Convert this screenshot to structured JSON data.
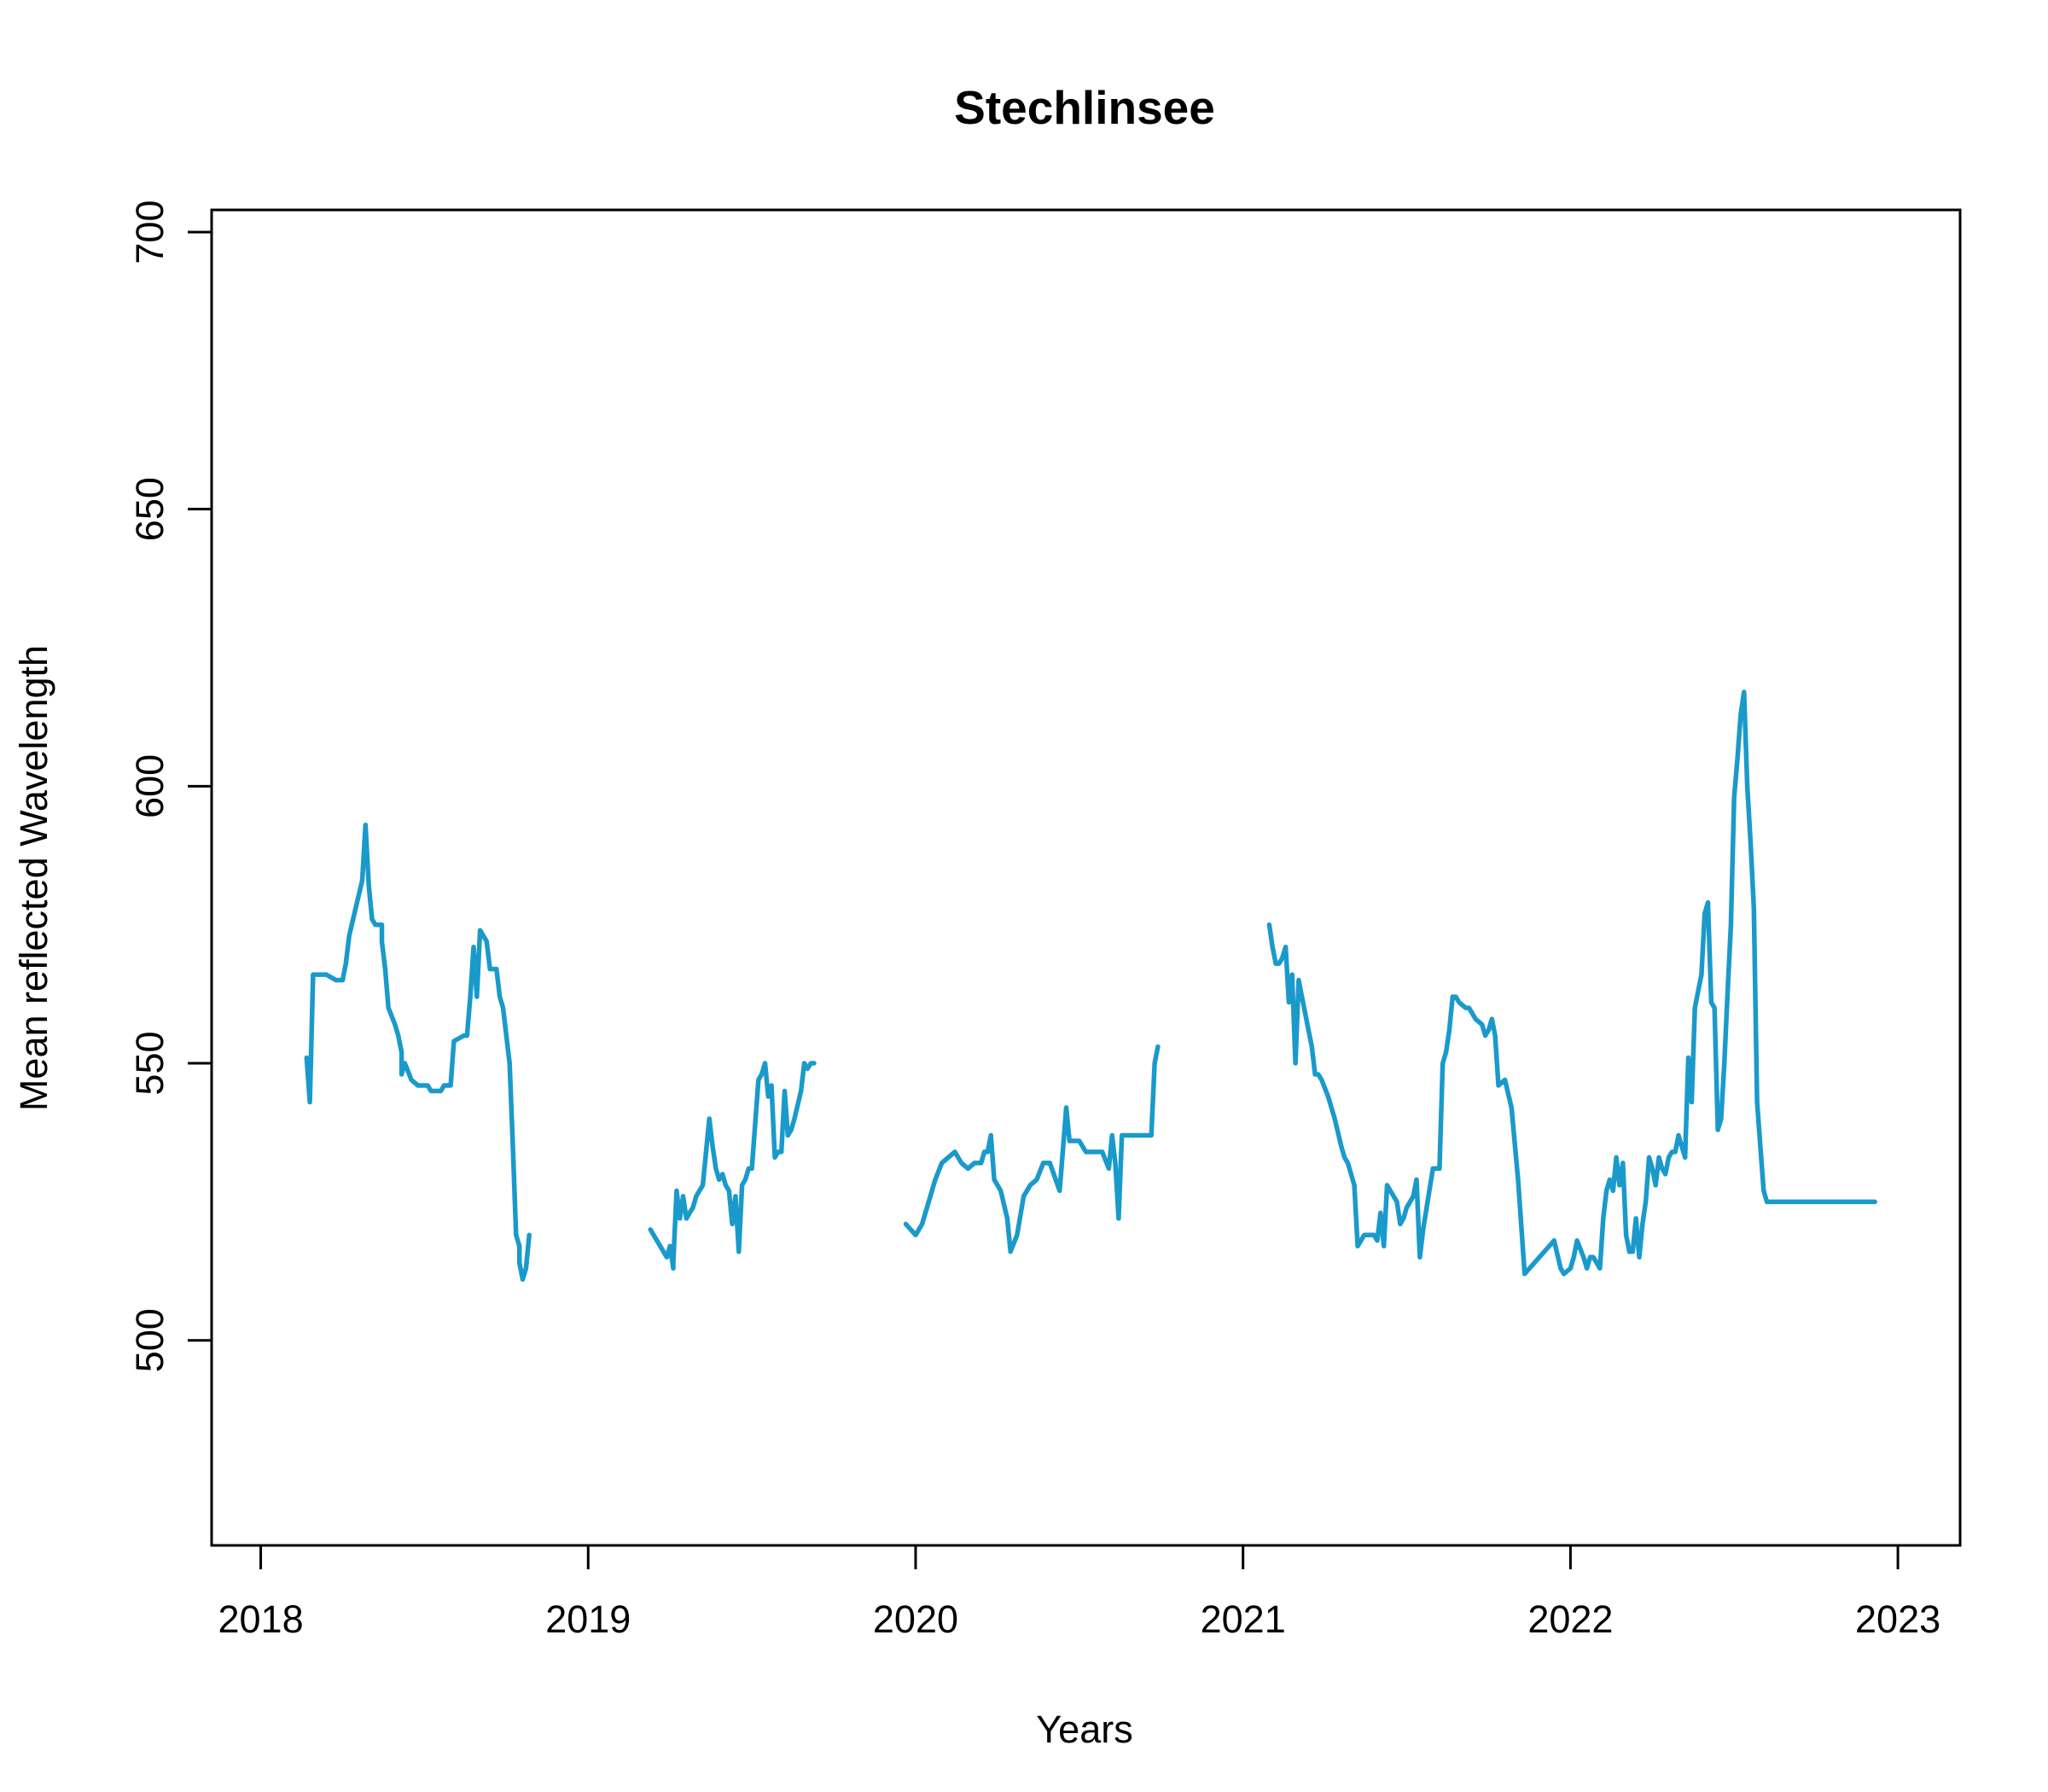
{
  "chart_data": {
    "type": "line",
    "title": "Stechlinsee",
    "xlabel": "Years",
    "ylabel": "Mean reflected Wavelength",
    "xlim": [
      2017.85,
      2023.19
    ],
    "ylim": [
      463,
      704
    ],
    "x_ticks": [
      2018,
      2019,
      2020,
      2021,
      2022,
      2023
    ],
    "x_tick_labels": [
      "2018",
      "2019",
      "2020",
      "2021",
      "2022",
      "2023"
    ],
    "y_ticks": [
      500,
      550,
      600,
      650,
      700
    ],
    "y_tick_labels": [
      "500",
      "550",
      "600",
      "650",
      "700"
    ],
    "grid": false,
    "legend": "none",
    "line_color": "#1a9acb",
    "series": [
      {
        "segments": [
          {
            "x": [
              2018.14,
              2018.15,
              2018.16,
              2018.17,
              2018.18,
              2018.2,
              2018.23,
              2018.25,
              2018.26,
              2018.27,
              2018.29,
              2018.31,
              2018.32,
              2018.33,
              2018.34,
              2018.35,
              2018.37,
              2018.37,
              2018.38,
              2018.39,
              2018.41,
              2018.42,
              2018.43,
              2018.43,
              2018.44,
              2018.46,
              2018.48,
              2018.5,
              2018.51,
              2018.52,
              2018.53,
              2018.54,
              2018.55,
              2018.56,
              2018.57,
              2018.58,
              2018.59,
              2018.62,
              2018.63,
              2018.64,
              2018.65,
              2018.66,
              2018.67,
              2018.69,
              2018.7,
              2018.72,
              2018.73,
              2018.74,
              2018.76,
              2018.77,
              2018.78,
              2018.79,
              2018.79,
              2018.8,
              2018.81,
              2018.82
            ],
            "y": [
              551,
              543,
              566,
              566,
              566,
              566,
              565,
              565,
              568,
              573,
              578,
              583,
              593,
              582,
              576,
              575,
              575,
              572,
              567,
              560,
              557,
              555,
              552,
              548,
              550,
              547,
              546,
              546,
              546,
              545,
              545,
              545,
              545,
              546,
              546,
              546,
              554,
              555,
              555,
              562,
              571,
              562,
              574,
              572,
              567,
              567,
              562,
              560,
              550,
              535,
              519,
              517,
              514,
              511,
              513,
              519
            ]
          },
          {
            "x": [
              2019.19,
              2019.22,
              2019.24,
              2019.25,
              2019.26,
              2019.26,
              2019.27,
              2019.28,
              2019.29,
              2019.3,
              2019.31,
              2019.32,
              2019.33,
              2019.34,
              2019.35,
              2019.37,
              2019.38,
              2019.39,
              2019.4,
              2019.41,
              2019.42,
              2019.43,
              2019.44,
              2019.45,
              2019.46,
              2019.47,
              2019.48,
              2019.49,
              2019.5,
              2019.52,
              2019.53,
              2019.54,
              2019.55,
              2019.56,
              2019.57,
              2019.58,
              2019.59,
              2019.6,
              2019.61,
              2019.62,
              2019.63,
              2019.65,
              2019.66,
              2019.67,
              2019.68,
              2019.69
            ],
            "y": [
              520,
              517,
              515,
              517,
              513,
              514,
              527,
              522,
              526,
              522,
              523,
              524,
              526,
              527,
              528,
              540,
              535,
              531,
              529,
              530,
              528,
              527,
              521,
              526,
              516,
              528,
              529,
              531,
              531,
              547,
              548,
              550,
              544,
              546,
              533,
              534,
              534,
              545,
              537,
              538,
              540,
              545,
              550,
              549,
              550,
              550
            ]
          },
          {
            "x": [
              2019.97,
              2020.0,
              2020.02,
              2020.04,
              2020.06,
              2020.08,
              2020.1,
              2020.12,
              2020.14,
              2020.16,
              2020.18,
              2020.2,
              2020.21,
              2020.22,
              2020.23,
              2020.24,
              2020.26,
              2020.28,
              2020.29,
              2020.31,
              2020.33,
              2020.35,
              2020.37,
              2020.39,
              2020.41,
              2020.44,
              2020.46,
              2020.47,
              2020.49,
              2020.5,
              2020.52,
              2020.53,
              2020.55,
              2020.57,
              2020.59,
              2020.6,
              2020.61,
              2020.62,
              2020.63,
              2020.64,
              2020.65,
              2020.66,
              2020.67,
              2020.69,
              2020.7,
              2020.71,
              2020.72,
              2020.73,
              2020.74
            ],
            "y": [
              521,
              519,
              521,
              525,
              529,
              532,
              533,
              534,
              532,
              531,
              532,
              532,
              534,
              534,
              537,
              529,
              527,
              522,
              516,
              519,
              526,
              528,
              529,
              532,
              532,
              527,
              542,
              536,
              536,
              536,
              534,
              534,
              534,
              534,
              531,
              537,
              532,
              522,
              537,
              537,
              537,
              537,
              537,
              537,
              537,
              537,
              537,
              550,
              553
            ]
          },
          {
            "x": [
              2021.08,
              2021.09,
              2021.1,
              2021.11,
              2021.12,
              2021.13,
              2021.14,
              2021.15,
              2021.16,
              2021.17,
              2021.18,
              2021.2,
              2021.21,
              2021.22,
              2021.23,
              2021.24,
              2021.26,
              2021.28,
              2021.3,
              2021.31,
              2021.32,
              2021.34,
              2021.35,
              2021.37,
              2021.39,
              2021.4,
              2021.41,
              2021.42,
              2021.43,
              2021.44,
              2021.45,
              2021.46,
              2021.47,
              2021.48,
              2021.49,
              2021.5,
              2021.51,
              2021.52,
              2021.53,
              2021.54,
              2021.55,
              2021.58,
              2021.59,
              2021.6,
              2021.61,
              2021.62,
              2021.63,
              2021.64,
              2021.65,
              2021.66,
              2021.68,
              2021.69,
              2021.7,
              2021.71,
              2021.73,
              2021.74,
              2021.75,
              2021.76,
              2021.77,
              2021.78,
              2021.8,
              2021.82,
              2021.84,
              2021.86,
              2021.89,
              2021.92,
              2021.95,
              2021.97,
              2021.98,
              2022.0,
              2022.01,
              2022.02,
              2022.04,
              2022.05,
              2022.06,
              2022.07,
              2022.08,
              2022.09,
              2022.1,
              2022.11,
              2022.12,
              2022.13,
              2022.14,
              2022.15,
              2022.16,
              2022.17,
              2022.18,
              2022.19,
              2022.2,
              2022.21,
              2022.22,
              2022.23,
              2022.24,
              2022.25,
              2022.26,
              2022.27,
              2022.28,
              2022.29,
              2022.3,
              2022.31,
              2022.32,
              2022.33,
              2022.34,
              2022.35,
              2022.36,
              2022.37,
              2022.38,
              2022.39,
              2022.4,
              2022.41,
              2022.42,
              2022.43,
              2022.44,
              2022.45,
              2022.46,
              2022.47,
              2022.48,
              2022.49,
              2022.5,
              2022.51,
              2022.52,
              2022.53,
              2022.54,
              2022.55,
              2022.56,
              2022.57,
              2022.58,
              2022.59,
              2022.6,
              2022.61,
              2022.62,
              2022.63,
              2022.64,
              2022.65,
              2022.66,
              2022.67,
              2022.68,
              2022.69,
              2022.7,
              2022.71,
              2022.72,
              2022.73,
              2022.74,
              2022.75,
              2022.76,
              2022.77,
              2022.78,
              2022.79,
              2022.8,
              2022.81,
              2022.82,
              2022.83,
              2022.84,
              2022.85,
              2022.86,
              2022.87,
              2022.88,
              2022.89,
              2022.9,
              2022.91,
              2022.92,
              2022.93
            ],
            "y": [
              575,
              571,
              568,
              568,
              569,
              571,
              561,
              566,
              550,
              565,
              562,
              556,
              553,
              548,
              548,
              547,
              544,
              540,
              535,
              533,
              532,
              528,
              517,
              519,
              519,
              519,
              518,
              523,
              517,
              528,
              527,
              526,
              525,
              521,
              522,
              524,
              525,
              526,
              529,
              515,
              520,
              531,
              531,
              531,
              550,
              552,
              556,
              562,
              562,
              561,
              560,
              560,
              559,
              558,
              557,
              555,
              556,
              558,
              555,
              546,
              547,
              542,
              529,
              512,
              514,
              516,
              518,
              513,
              512,
              513,
              515,
              518,
              515,
              513,
              515,
              515,
              514,
              513,
              522,
              527,
              529,
              527,
              533,
              528,
              532,
              519,
              516,
              516,
              522,
              515,
              521,
              525,
              533,
              531,
              528,
              533,
              531,
              530,
              533,
              534,
              534,
              537,
              535,
              533,
              551,
              543,
              560,
              563,
              566,
              577,
              579,
              561,
              560,
              538,
              540,
              550,
              563,
              575,
              598,
              605,
              613,
              617,
              600,
              590,
              578,
              543,
              535,
              527,
              525,
              525,
              525,
              525,
              525,
              525,
              525,
              525,
              525,
              525,
              525,
              525,
              525,
              525,
              525,
              525,
              525,
              525,
              525,
              525,
              525,
              525,
              525,
              525,
              525,
              525,
              525,
              525,
              525,
              525,
              525,
              525,
              525,
              525
            ]
          }
        ]
      }
    ]
  }
}
